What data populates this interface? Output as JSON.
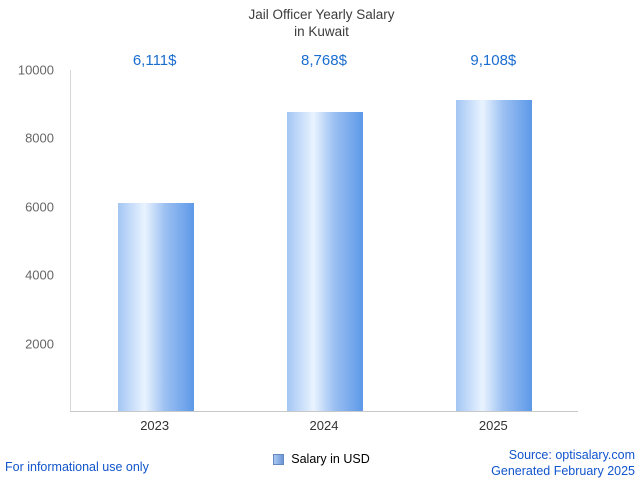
{
  "title": {
    "line1": "Jail Officer Yearly Salary",
    "line2": "in Kuwait"
  },
  "chart_data": {
    "type": "bar",
    "title": "Jail Officer Yearly Salary in Kuwait",
    "categories": [
      "2023",
      "2024",
      "2025"
    ],
    "values": [
      6111,
      8768,
      9108
    ],
    "value_labels": [
      "6,111$",
      "8,768$",
      "9,108$"
    ],
    "series_name": "Salary in USD",
    "xlabel": "",
    "ylabel": "",
    "ylim": [
      0,
      10000
    ],
    "yticks": [
      2000,
      4000,
      6000,
      8000,
      10000
    ],
    "grid": false,
    "legend_position": "bottom"
  },
  "legend": {
    "label": "Salary in USD"
  },
  "colors": {
    "bar_light": "#e9f3ff",
    "bar_mid": "#9cc0f2",
    "bar_dark": "#5d99e8",
    "value_label": "#1a6dd0",
    "link_blue": "#1155cc",
    "axis_text": "#666666"
  },
  "footer": {
    "left_note": "For informational use only",
    "source": "Source: optisalary.com",
    "generated": "Generated February 2025"
  }
}
